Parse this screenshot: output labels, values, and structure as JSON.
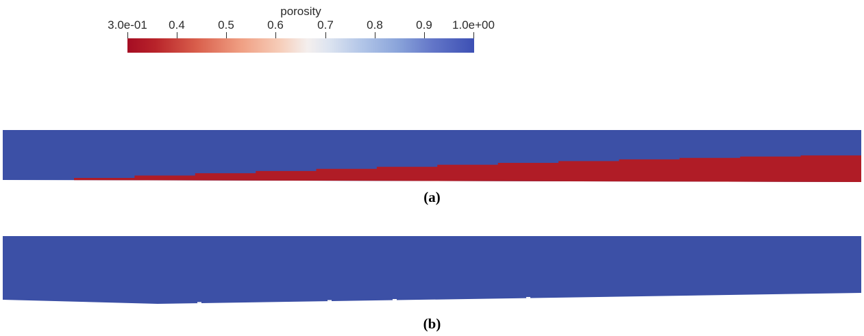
{
  "chart_data": {
    "type": "heatmap",
    "title": "porosity",
    "colorbar": {
      "orientation": "horizontal",
      "range": [
        0.3,
        1.0
      ],
      "ticks": [
        0.3,
        0.4,
        0.5,
        0.6,
        0.7,
        0.8,
        0.9,
        1.0
      ],
      "tick_labels": [
        "3.0e-01",
        "0.4",
        "0.5",
        "0.6",
        "0.7",
        "0.8",
        "0.9",
        "1.0e+00"
      ],
      "colormap": "cool-to-warm-reversed",
      "gradient_stops": [
        {
          "pos": 0.0,
          "color": "#a50d23"
        },
        {
          "pos": 0.08,
          "color": "#b8232a"
        },
        {
          "pos": 0.2,
          "color": "#d95f4c"
        },
        {
          "pos": 0.33,
          "color": "#f0a084"
        },
        {
          "pos": 0.44,
          "color": "#f6cdb9"
        },
        {
          "pos": 0.52,
          "color": "#f4efee"
        },
        {
          "pos": 0.58,
          "color": "#dde4f0"
        },
        {
          "pos": 0.68,
          "color": "#b0c4e7"
        },
        {
          "pos": 0.78,
          "color": "#8aa4da"
        },
        {
          "pos": 0.88,
          "color": "#6376c8"
        },
        {
          "pos": 1.0,
          "color": "#3d50b4"
        }
      ]
    },
    "panels": [
      {
        "label": "(a)",
        "regions": [
          {
            "name": "upper-fluid-region",
            "porosity": 1.0,
            "color": "#3c50a6"
          },
          {
            "name": "lower-porous-wedge-stepped",
            "porosity": 0.3,
            "color": "#b01c26"
          }
        ]
      },
      {
        "label": "(b)",
        "regions": [
          {
            "name": "full-domain",
            "porosity": 1.0,
            "color": "#3c50a6"
          }
        ]
      }
    ]
  }
}
